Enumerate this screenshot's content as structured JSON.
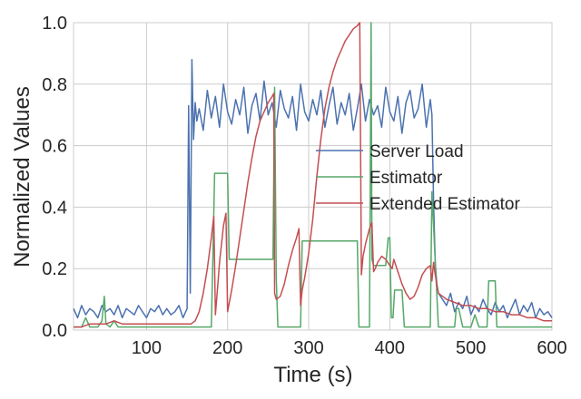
{
  "chart_data": {
    "type": "line",
    "xlabel": "Time (s)",
    "ylabel": "Normalized Values",
    "xlim": [
      10,
      600
    ],
    "ylim": [
      0,
      1
    ],
    "xticks": [
      100,
      200,
      300,
      400,
      500,
      600
    ],
    "xtick_labels": [
      "100",
      "200",
      "300",
      "400",
      "500",
      "600"
    ],
    "yticks": [
      0.0,
      0.2,
      0.4,
      0.6,
      0.8,
      1.0
    ],
    "ytick_labels": [
      "0.0",
      "0.2",
      "0.4",
      "0.6",
      "0.8",
      "1.0"
    ],
    "grid": true,
    "legend_position": "center-right",
    "series": [
      {
        "name": "Server Load",
        "color": "#4c72b0",
        "x": [
          10,
          15,
          20,
          25,
          30,
          35,
          40,
          45,
          50,
          55,
          60,
          65,
          70,
          75,
          80,
          85,
          90,
          95,
          100,
          105,
          110,
          115,
          120,
          125,
          130,
          135,
          140,
          145,
          150,
          152,
          154,
          156,
          158,
          160,
          162,
          165,
          170,
          175,
          180,
          185,
          190,
          195,
          200,
          205,
          210,
          215,
          220,
          225,
          230,
          235,
          240,
          245,
          250,
          255,
          260,
          265,
          270,
          275,
          280,
          285,
          290,
          295,
          300,
          305,
          310,
          315,
          320,
          325,
          330,
          335,
          340,
          345,
          350,
          355,
          360,
          365,
          370,
          375,
          380,
          385,
          390,
          395,
          400,
          405,
          410,
          415,
          420,
          425,
          430,
          435,
          440,
          445,
          450,
          452,
          454,
          456,
          458,
          460,
          465,
          470,
          475,
          480,
          485,
          490,
          495,
          500,
          505,
          510,
          515,
          520,
          525,
          530,
          535,
          540,
          545,
          550,
          555,
          560,
          565,
          570,
          575,
          580,
          585,
          590,
          595,
          600
        ],
        "y": [
          0.07,
          0.04,
          0.08,
          0.05,
          0.07,
          0.06,
          0.04,
          0.08,
          0.06,
          0.07,
          0.05,
          0.08,
          0.04,
          0.07,
          0.06,
          0.05,
          0.08,
          0.06,
          0.04,
          0.07,
          0.06,
          0.08,
          0.05,
          0.07,
          0.05,
          0.06,
          0.08,
          0.04,
          0.07,
          0.73,
          0.12,
          0.88,
          0.62,
          0.74,
          0.68,
          0.72,
          0.65,
          0.78,
          0.69,
          0.76,
          0.66,
          0.8,
          0.71,
          0.67,
          0.75,
          0.7,
          0.79,
          0.64,
          0.73,
          0.77,
          0.68,
          0.81,
          0.7,
          0.74,
          0.66,
          0.78,
          0.72,
          0.69,
          0.76,
          0.65,
          0.8,
          0.71,
          0.68,
          0.75,
          0.7,
          0.78,
          0.66,
          0.73,
          0.79,
          0.67,
          0.74,
          0.7,
          0.77,
          0.65,
          0.72,
          0.8,
          0.68,
          0.75,
          0.7,
          0.73,
          0.66,
          0.79,
          0.71,
          0.68,
          0.76,
          0.64,
          0.74,
          0.78,
          0.69,
          0.72,
          0.8,
          0.66,
          0.75,
          0.7,
          0.42,
          0.22,
          0.15,
          0.12,
          0.1,
          0.08,
          0.12,
          0.06,
          0.09,
          0.07,
          0.11,
          0.05,
          0.08,
          0.06,
          0.1,
          0.07,
          0.05,
          0.09,
          0.06,
          0.08,
          0.04,
          0.07,
          0.1,
          0.05,
          0.08,
          0.06,
          0.09,
          0.04,
          0.07,
          0.05,
          0.06,
          0.04
        ]
      },
      {
        "name": "Estimator",
        "color": "#55a868",
        "x": [
          10,
          20,
          25,
          30,
          40,
          45,
          48,
          50,
          55,
          60,
          65,
          70,
          90,
          100,
          120,
          150,
          160,
          180,
          182,
          184,
          200,
          202,
          215,
          240,
          256,
          258,
          260,
          262,
          290,
          292,
          300,
          360,
          362,
          375,
          377,
          378,
          380,
          382,
          395,
          398,
          400,
          402,
          404,
          406,
          415,
          418,
          435,
          450,
          452,
          460,
          470,
          480,
          482,
          485,
          490,
          500,
          505,
          510,
          520,
          522,
          530,
          532,
          540,
          545,
          560,
          580,
          590,
          600
        ],
        "y": [
          0.01,
          0.01,
          0.04,
          0.01,
          0.01,
          0.03,
          0.11,
          0.02,
          0.01,
          0.03,
          0.01,
          0.01,
          0.01,
          0.01,
          0.01,
          0.01,
          0.01,
          0.01,
          0.25,
          0.51,
          0.51,
          0.23,
          0.23,
          0.23,
          0.23,
          0.79,
          0.17,
          0.01,
          0.01,
          0.29,
          0.29,
          0.29,
          0.01,
          0.01,
          1.0,
          0.23,
          0.21,
          0.21,
          0.21,
          0.3,
          0.3,
          0.04,
          0.04,
          0.13,
          0.13,
          0.01,
          0.01,
          0.01,
          0.45,
          0.01,
          0.01,
          0.01,
          0.07,
          0.07,
          0.01,
          0.01,
          0.05,
          0.01,
          0.01,
          0.16,
          0.16,
          0.01,
          0.01,
          0.01,
          0.01,
          0.01,
          0.01,
          0.01
        ]
      },
      {
        "name": "Extended Estimator",
        "color": "#c44e52",
        "x": [
          10,
          20,
          30,
          40,
          50,
          60,
          70,
          80,
          90,
          100,
          110,
          120,
          130,
          140,
          150,
          155,
          160,
          165,
          170,
          175,
          180,
          183,
          185,
          188,
          190,
          195,
          198,
          200,
          205,
          210,
          215,
          220,
          225,
          230,
          235,
          240,
          245,
          250,
          255,
          257,
          258,
          260,
          265,
          270,
          275,
          280,
          285,
          288,
          290,
          292,
          295,
          300,
          305,
          310,
          315,
          320,
          325,
          330,
          335,
          340,
          345,
          350,
          355,
          360,
          363,
          365,
          367,
          370,
          375,
          378,
          380,
          382,
          385,
          390,
          395,
          400,
          403,
          405,
          410,
          415,
          420,
          425,
          430,
          435,
          440,
          445,
          450,
          452,
          454,
          456,
          460,
          465,
          470,
          480,
          490,
          500,
          510,
          520,
          530,
          540,
          550,
          560,
          570,
          580,
          590,
          600
        ],
        "y": [
          0.01,
          0.01,
          0.02,
          0.02,
          0.02,
          0.03,
          0.02,
          0.02,
          0.02,
          0.02,
          0.02,
          0.02,
          0.02,
          0.02,
          0.02,
          0.02,
          0.03,
          0.06,
          0.12,
          0.2,
          0.3,
          0.37,
          0.05,
          0.15,
          0.22,
          0.34,
          0.38,
          0.06,
          0.13,
          0.21,
          0.3,
          0.39,
          0.48,
          0.56,
          0.63,
          0.68,
          0.71,
          0.74,
          0.76,
          0.77,
          0.12,
          0.1,
          0.11,
          0.15,
          0.21,
          0.26,
          0.3,
          0.33,
          0.08,
          0.13,
          0.17,
          0.25,
          0.36,
          0.5,
          0.62,
          0.72,
          0.79,
          0.84,
          0.88,
          0.91,
          0.94,
          0.96,
          0.98,
          0.99,
          1.0,
          0.18,
          0.24,
          0.28,
          0.33,
          0.35,
          0.19,
          0.2,
          0.22,
          0.24,
          0.23,
          0.21,
          0.2,
          0.23,
          0.19,
          0.15,
          0.12,
          0.1,
          0.11,
          0.14,
          0.18,
          0.2,
          0.21,
          0.16,
          0.22,
          0.18,
          0.12,
          0.11,
          0.1,
          0.09,
          0.08,
          0.08,
          0.07,
          0.07,
          0.06,
          0.06,
          0.05,
          0.05,
          0.04,
          0.04,
          0.03,
          0.03
        ]
      }
    ]
  }
}
